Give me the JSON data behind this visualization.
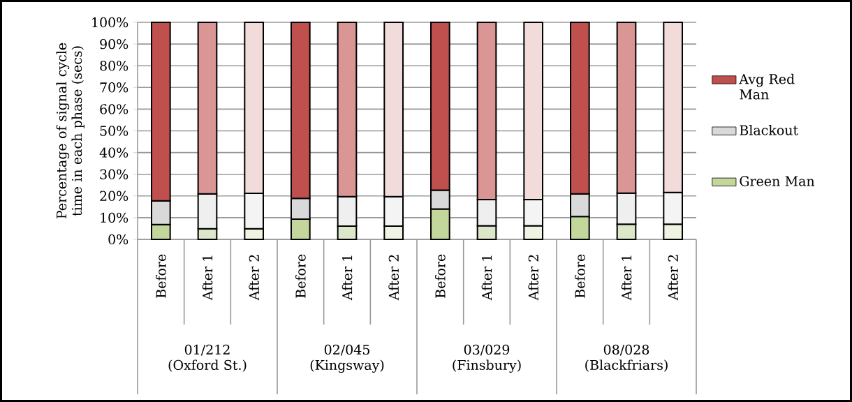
{
  "chart_data": {
    "type": "bar",
    "stacked": true,
    "ylabel": "Percentage of signal cycle time in each phase (secs)",
    "categories": [
      "Before",
      "After 1",
      "After 2",
      "Before",
      "After 1",
      "After 2",
      "Before",
      "After 1",
      "After 2",
      "Before",
      "After 1",
      "After 2"
    ],
    "series": [
      {
        "name": "Green Man",
        "colors": [
          "#c3d69b",
          "#dce6c8",
          "#eef3e3",
          "#c3d69b",
          "#dce6c8",
          "#eef3e3",
          "#c3d69b",
          "#dce6c8",
          "#eef3e3",
          "#c3d69b",
          "#dce6c8",
          "#eef3e3"
        ],
        "values": [
          6.8,
          4.9,
          4.9,
          9.3,
          6.1,
          6.1,
          14.0,
          6.3,
          6.3,
          10.5,
          7.0,
          7.0
        ]
      },
      {
        "name": "Blackout",
        "colors": [
          "#d9d9d9",
          "#efefef",
          "#f4f4f4",
          "#d9d9d9",
          "#efefef",
          "#f4f4f4",
          "#d9d9d9",
          "#efefef",
          "#f4f4f4",
          "#d9d9d9",
          "#efefef",
          "#f4f4f4"
        ],
        "values": [
          11.0,
          16.1,
          16.3,
          9.6,
          13.6,
          13.6,
          8.7,
          12.0,
          12.0,
          10.5,
          14.3,
          14.6
        ]
      },
      {
        "name": "Avg Red Man",
        "colors": [
          "#c0504d",
          "#d99694",
          "#f2dcdb",
          "#c0504d",
          "#d99694",
          "#f2dcdb",
          "#c0504d",
          "#d99694",
          "#f2dcdb",
          "#c0504d",
          "#d99694",
          "#f2dcdb"
        ],
        "values": [
          82.2,
          79.0,
          78.8,
          81.1,
          80.3,
          80.3,
          77.3,
          81.7,
          81.7,
          79.0,
          78.7,
          78.4
        ]
      }
    ],
    "ylim": [
      0,
      100
    ],
    "yticks": [
      {
        "value": 0,
        "label": "0%"
      },
      {
        "value": 10,
        "label": "10%"
      },
      {
        "value": 20,
        "label": "20%"
      },
      {
        "value": 30,
        "label": "30%"
      },
      {
        "value": 40,
        "label": "40%"
      },
      {
        "value": 50,
        "label": "50%"
      },
      {
        "value": 60,
        "label": "60%"
      },
      {
        "value": 70,
        "label": "70%"
      },
      {
        "value": 80,
        "label": "80%"
      },
      {
        "value": 90,
        "label": "90%"
      },
      {
        "value": 100,
        "label": "100%"
      }
    ],
    "grid": "y",
    "legend": "right",
    "annotations": [
      "01/212 (Oxford St.)",
      "02/045 (Kingsway)",
      "03/029 (Finsbury)",
      "08/028 (Blackfriars)"
    ]
  }
}
